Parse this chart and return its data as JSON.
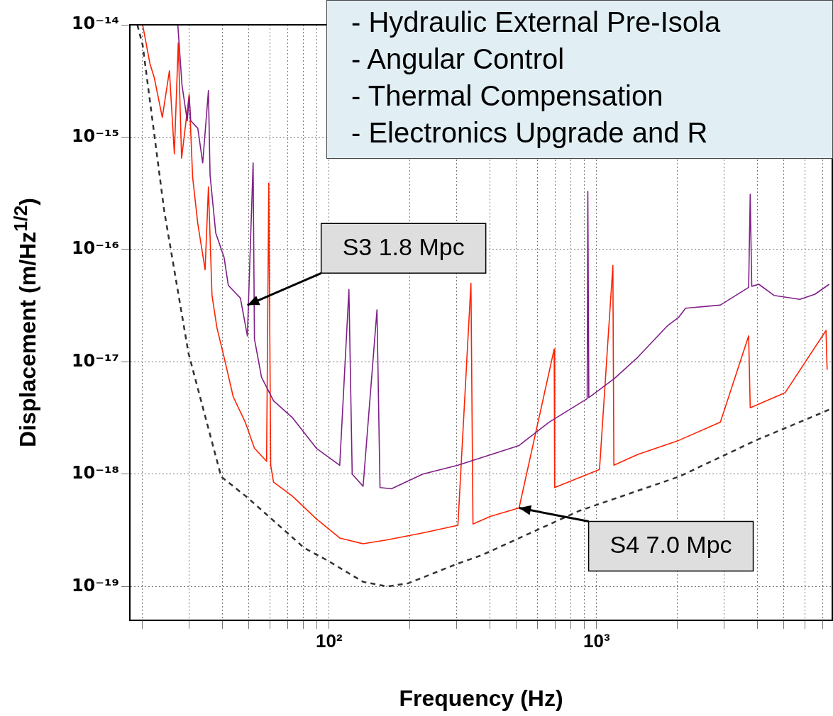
{
  "chart_data": {
    "type": "line",
    "xlabel": "Frequency (Hz)",
    "ylabel": "Displacement (m/Hz$^{1/2}$)",
    "log": "xy",
    "grid": true,
    "legend": false,
    "marker": "none",
    "xlim": [
      18,
      7600
    ],
    "ylim": [
      5e-20,
      1e-14
    ],
    "xticks": [
      {
        "value": 20,
        "label": null
      },
      {
        "value": 30,
        "label": null
      },
      {
        "value": 40,
        "label": null
      },
      {
        "value": 50,
        "label": null
      },
      {
        "value": 60,
        "label": null
      },
      {
        "value": 70,
        "label": null
      },
      {
        "value": 80,
        "label": null
      },
      {
        "value": 90,
        "label": null
      },
      {
        "value": 100,
        "label": "10²"
      },
      {
        "value": 200,
        "label": null
      },
      {
        "value": 300,
        "label": null
      },
      {
        "value": 400,
        "label": null
      },
      {
        "value": 500,
        "label": null
      },
      {
        "value": 600,
        "label": null
      },
      {
        "value": 700,
        "label": null
      },
      {
        "value": 800,
        "label": null
      },
      {
        "value": 900,
        "label": null
      },
      {
        "value": 1000,
        "label": "10³"
      },
      {
        "value": 2000,
        "label": null
      },
      {
        "value": 3000,
        "label": null
      },
      {
        "value": 4000,
        "label": null
      },
      {
        "value": 5000,
        "label": null
      },
      {
        "value": 6000,
        "label": null
      },
      {
        "value": 7000,
        "label": null
      }
    ],
    "yticks": [
      {
        "value": 1e-19,
        "label": "10⁻¹⁹"
      },
      {
        "value": 1e-18,
        "label": "10⁻¹⁸"
      },
      {
        "value": 1e-17,
        "label": "10⁻¹⁷"
      },
      {
        "value": 1e-16,
        "label": "10⁻¹⁶"
      },
      {
        "value": 1e-15,
        "label": "10⁻¹⁵"
      },
      {
        "value": 1e-14,
        "label": "10⁻¹⁴"
      }
    ],
    "series": [
      {
        "color": "#7f1f88",
        "x": [
          27.2,
          28.2,
          29.5,
          30.0,
          30.4,
          32.3,
          33.7,
          35.4,
          35.9,
          37.7,
          40.5,
          42,
          46.6,
          49.5,
          52,
          52.6,
          55.9,
          62,
          72.8,
          89.6,
          109.6,
          118.6,
          122,
          134,
          151,
          155,
          171,
          224,
          303,
          513,
          664,
          922,
          927,
          935,
          1166,
          1426,
          1843,
          2030,
          2150,
          2900,
          3700,
          3750,
          3800,
          4040,
          4600,
          5750,
          6550,
          7400
        ],
        "values": [
          1e-14,
          2.9e-15,
          1.4e-15,
          2.3e-15,
          1.4e-15,
          1.2e-15,
          5.9e-16,
          2.6e-15,
          4.6e-16,
          1.4e-16,
          8.5e-17,
          4.8e-17,
          3.7e-17,
          1.7e-17,
          5.9e-16,
          1.6e-17,
          7.3e-18,
          4.5e-18,
          3.2e-18,
          1.7e-18,
          1.2e-18,
          4.4e-17,
          1e-18,
          7.8e-19,
          2.9e-17,
          7.6e-19,
          7.4e-19,
          1e-18,
          1.2e-18,
          1.8e-18,
          2.9e-18,
          4.7e-18,
          3.3e-16,
          4.8e-18,
          7.1e-18,
          1.1e-17,
          2.1e-17,
          2.5e-17,
          3e-17,
          3.2e-17,
          4.6e-17,
          3.1e-16,
          4.7e-17,
          4.9e-17,
          3.9e-17,
          3.6e-17,
          4e-17,
          4.9e-17
        ]
      },
      {
        "color": "#ff2200",
        "x": [
          20.1,
          21.4,
          22.2,
          23.8,
          25.3,
          26.4,
          27.3,
          28.1,
          30,
          30.9,
          32.3,
          34.4,
          35.4,
          36.5,
          38.1,
          40.5,
          43.8,
          48.6,
          52.6,
          58.4,
          59.5,
          60.5,
          62,
          72.8,
          89.6,
          109.6,
          134,
          165,
          224,
          303,
          339,
          345,
          400,
          513,
          694,
          697,
          1025,
          1150,
          1160,
          1426,
          2030,
          2900,
          3700,
          3750,
          5060,
          7200,
          7270
        ],
        "values": [
          1e-14,
          4.5e-15,
          3.4e-15,
          1.5e-15,
          3.9e-15,
          7.1e-16,
          6.9e-15,
          6.5e-16,
          2.4e-15,
          4.4e-16,
          1.7e-16,
          6.6e-17,
          3.6e-16,
          3.9e-17,
          2e-17,
          1.1e-17,
          4.9e-18,
          2.9e-18,
          1.7e-18,
          1.3e-18,
          3.9e-16,
          1.2e-18,
          8.5e-19,
          6.4e-19,
          4e-19,
          2.7e-19,
          2.4e-19,
          2.6e-19,
          3e-19,
          3.5e-19,
          5e-17,
          3.6e-19,
          4.2e-19,
          5e-19,
          1.3e-17,
          7.6e-19,
          1.1e-18,
          7.2e-17,
          1.2e-18,
          1.5e-18,
          2e-18,
          2.9e-18,
          1.7e-17,
          3.9e-18,
          5.3e-18,
          1.9e-17,
          8.5e-18
        ]
      },
      {
        "color": "#333333",
        "line_style": "dashed",
        "x": [
          19.2,
          20.1,
          24.2,
          29.8,
          39.5,
          49.5,
          59.5,
          80.8,
          98.8,
          134,
          165,
          198,
          303,
          372,
          858,
          2030,
          3940,
          7500
        ],
        "values": [
          1e-14,
          6.6e-15,
          2.2e-16,
          1.2e-17,
          9.5e-19,
          6.2e-19,
          4.2e-19,
          2.2e-19,
          1.7e-19,
          1.1e-19,
          1e-19,
          1.07e-19,
          1.6e-19,
          1.9e-19,
          4.7e-19,
          9.5e-19,
          2e-18,
          3.8e-18
        ]
      }
    ],
    "annotations": [
      "- Hydraulic External Pre-Isola",
      "- Angular Control",
      "- Thermal Compensation",
      "- Electronics Upgrade and R",
      {
        "text": "S3 1.8 Mpc",
        "x": 49.5,
        "y": 3.2e-17
      },
      {
        "text": "S4 7.0 Mpc",
        "x": 513,
        "y": 5e-19
      }
    ]
  }
}
